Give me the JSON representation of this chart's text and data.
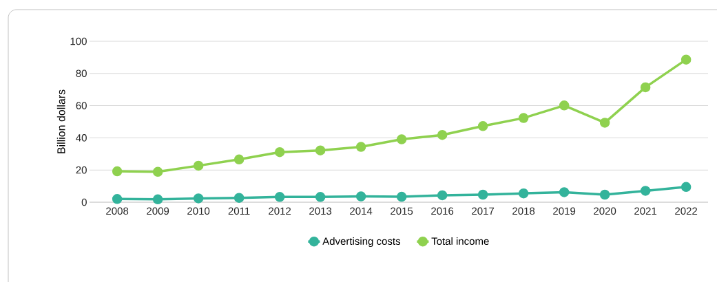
{
  "chart_data": {
    "type": "line",
    "ylabel": "Billion dollars",
    "categories": [
      "2008",
      "2009",
      "2010",
      "2011",
      "2012",
      "2013",
      "2014",
      "2015",
      "2016",
      "2017",
      "2018",
      "2019",
      "2020",
      "2021",
      "2022"
    ],
    "series": [
      {
        "name": "Advertising costs",
        "color": "#33b39b",
        "values": [
          2.0,
          1.8,
          2.4,
          2.7,
          3.3,
          3.3,
          3.6,
          3.4,
          4.3,
          4.7,
          5.5,
          6.2,
          4.7,
          7.1,
          9.5
        ]
      },
      {
        "name": "Total income",
        "color": "#8fd14f",
        "values": [
          19.2,
          18.9,
          22.7,
          26.6,
          31.1,
          32.2,
          34.4,
          39.1,
          41.8,
          47.3,
          52.3,
          60.1,
          49.4,
          71.4,
          88.6
        ]
      }
    ],
    "ylim": [
      0,
      100
    ],
    "yticks": [
      0,
      20,
      40,
      60,
      80,
      100
    ],
    "grid": "y",
    "legend": "bottom",
    "marker": "circle",
    "line_style": "solid"
  }
}
